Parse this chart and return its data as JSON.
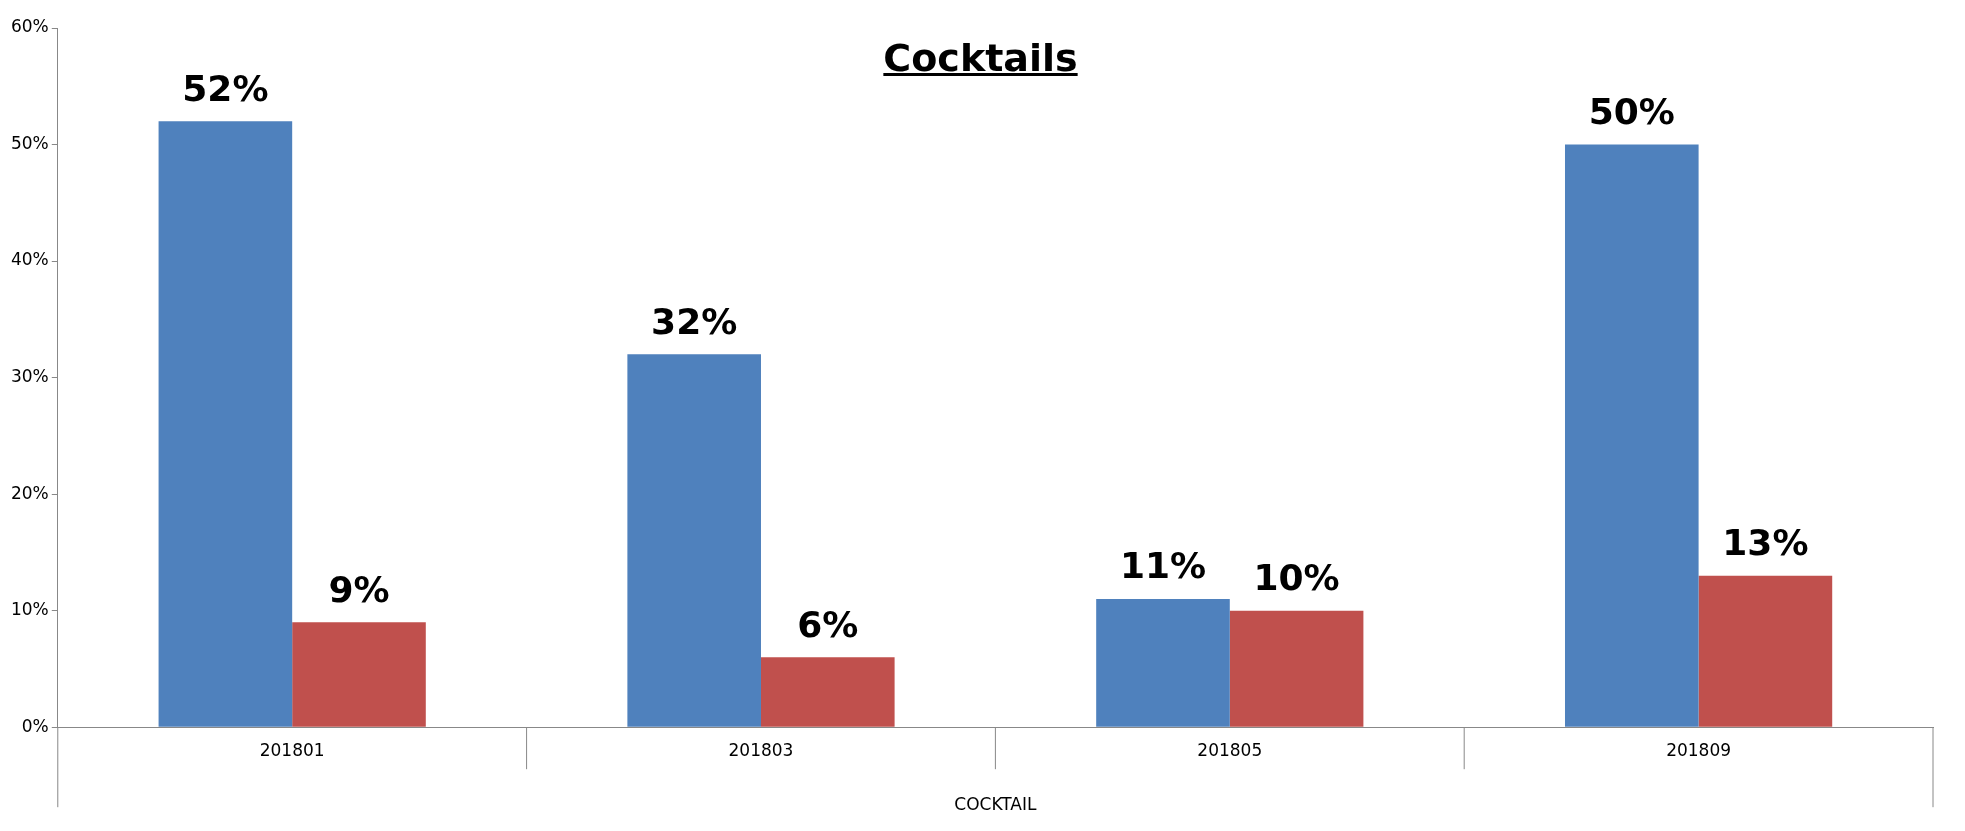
{
  "chart_data": {
    "type": "bar",
    "title": "Cocktails",
    "xlabel": "COCKTAIL",
    "categories": [
      "201801",
      "201803",
      "201805",
      "201809"
    ],
    "series": [
      {
        "color": "#4f81bd",
        "values": [
          52,
          32,
          11,
          50
        ],
        "value_labels": [
          "52%",
          "32%",
          "11%",
          "50%"
        ]
      },
      {
        "color": "#c0504d",
        "values": [
          9,
          6,
          10,
          13
        ],
        "value_labels": [
          "9%",
          "6%",
          "10%",
          "13%"
        ]
      }
    ],
    "ylim": [
      0,
      60
    ],
    "yticks": [
      {
        "value": 0,
        "label": "0%"
      },
      {
        "value": 10,
        "label": "10%"
      },
      {
        "value": 20,
        "label": "20%"
      },
      {
        "value": 30,
        "label": "30%"
      },
      {
        "value": 40,
        "label": "40%"
      },
      {
        "value": 50,
        "label": "50%"
      },
      {
        "value": 60,
        "label": "60%"
      }
    ],
    "grid": false,
    "legend": false
  }
}
